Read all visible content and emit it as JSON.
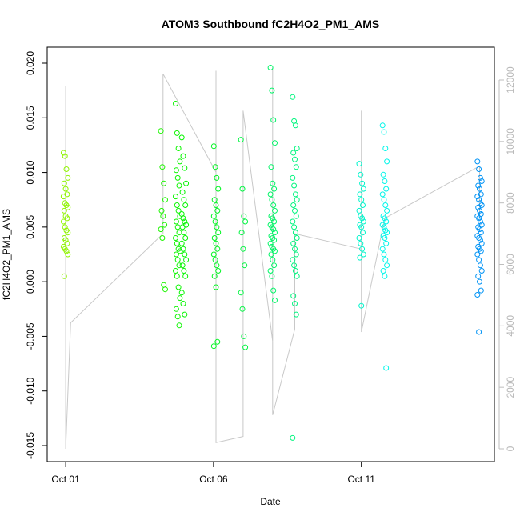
{
  "chart_data": {
    "type": "scatter",
    "title": "ATOM3 Southbound fC2H4O2_PM1_AMS",
    "xlabel": "Date",
    "ylabel": "fC2H4O2_PM1_AMS",
    "x_ticks": [
      {
        "date": "2016-10-01",
        "label": "Oct 01"
      },
      {
        "date": "2016-10-06",
        "label": "Oct 06"
      },
      {
        "date": "2016-10-11",
        "label": "Oct 11"
      }
    ],
    "xlim": [
      "2016-09-30T09:00",
      "2016-10-15T12:00"
    ],
    "ylim": [
      -0.015,
      0.02
    ],
    "y_ticks": [
      -0.015,
      -0.01,
      -0.005,
      0.0,
      0.005,
      0.01,
      0.015,
      0.02
    ],
    "y_tick_labels": [
      "-0.015",
      "-0.010",
      "-0.005",
      "0.000",
      "0.005",
      "0.010",
      "0.015",
      "0.020"
    ],
    "right_axis": {
      "ylim": [
        0,
        12000
      ],
      "ticks": [
        0,
        2000,
        4000,
        6000,
        8000,
        10000,
        12000
      ],
      "tick_labels": [
        "0",
        "2000",
        "4000",
        "6000",
        "8000",
        "10000",
        "12000"
      ],
      "color": "#bebebe"
    },
    "grid": false,
    "legend": "none",
    "marker": "open-circle",
    "color_scale": "rainbow by time (yellow-green to blue)",
    "line_color": "#c8c8c8",
    "clusters": [
      {
        "t": "2016-10-01T00:00",
        "vals": [
          0.0118,
          0.0115,
          0.0103,
          0.0095,
          0.009,
          0.0085,
          0.008,
          0.0078,
          0.0072,
          0.007,
          0.0068,
          0.0065,
          0.006,
          0.0058,
          0.0055,
          0.005,
          0.0047,
          0.0045,
          0.004,
          0.0038,
          0.0035,
          0.0032,
          0.003,
          0.0028,
          0.0025,
          0.0005
        ]
      },
      {
        "t": "2016-10-04T07:00",
        "vals": [
          0.0138,
          0.0105,
          0.009,
          0.0075,
          0.0065,
          0.006,
          0.0052,
          0.0048,
          0.004,
          -0.0003,
          -0.0007
        ]
      },
      {
        "t": "2016-10-04T19:00",
        "vals": [
          0.0163,
          0.0136,
          0.0122,
          0.011,
          0.0102,
          0.0095,
          0.0088,
          0.0078,
          0.007,
          0.0065,
          0.006,
          0.0055,
          0.005,
          0.0045,
          0.004,
          0.0035,
          0.003,
          0.0028,
          0.0025,
          0.002,
          0.0015,
          0.001,
          0.0005,
          -0.0005,
          -0.0015,
          -0.0025,
          -0.0032,
          -0.004
        ]
      },
      {
        "t": "2016-10-05T00:00",
        "vals": [
          0.0132,
          0.0115,
          0.0104,
          0.009,
          0.0082,
          0.0075,
          0.007,
          0.0062,
          0.0058,
          0.0055,
          0.0052,
          0.005,
          0.0045,
          0.004,
          0.0035,
          0.003,
          0.0025,
          0.002,
          0.0015,
          0.001,
          0.0005,
          -0.001,
          -0.002,
          -0.003
        ]
      },
      {
        "t": "2016-10-06T02:00",
        "vals": [
          0.0124,
          0.0105,
          0.0095,
          0.0085,
          0.0075,
          0.007,
          0.0065,
          0.006,
          0.0055,
          0.005,
          0.0045,
          0.004,
          0.0035,
          0.003,
          0.0025,
          0.002,
          0.0015,
          0.001,
          0.0005,
          -0.0005,
          -0.0055,
          -0.0059
        ]
      },
      {
        "t": "2016-10-07T00:00",
        "vals": [
          0.013,
          0.0085,
          0.006,
          0.0055,
          0.0045,
          0.003,
          0.0015,
          -0.001,
          -0.0025,
          -0.005,
          -0.006
        ]
      },
      {
        "t": "2016-10-08T00:00",
        "vals": [
          0.0196,
          0.0175,
          0.0148,
          0.0127,
          0.0105,
          0.009,
          0.0085,
          0.008,
          0.0075,
          0.007,
          0.0065,
          0.006,
          0.0058,
          0.0055,
          0.0052,
          0.005,
          0.0048,
          0.0045,
          0.0042,
          0.004,
          0.0038,
          0.0035,
          0.0032,
          0.003,
          0.0028,
          0.0025,
          0.002,
          0.0015,
          0.001,
          0.0005,
          -0.0008,
          -0.0017
        ]
      },
      {
        "t": "2016-10-08T18:00",
        "vals": [
          0.0169,
          0.0147,
          0.0143,
          0.0122,
          0.0118,
          0.0112,
          0.0105,
          0.0095,
          0.0088,
          0.008,
          0.0075,
          0.007,
          0.0065,
          0.006,
          0.0055,
          0.005,
          0.0045,
          0.004,
          0.0035,
          0.003,
          0.0025,
          0.002,
          0.0015,
          0.001,
          0.0005,
          -0.0013,
          -0.002,
          -0.003,
          -0.0143
        ]
      },
      {
        "t": "2016-10-11T00:00",
        "vals": [
          0.0108,
          0.0098,
          0.009,
          0.0085,
          0.008,
          0.0075,
          0.007,
          0.0065,
          0.006,
          0.0058,
          0.0055,
          0.0052,
          0.005,
          0.0045,
          0.004,
          0.0035,
          0.003,
          0.0025,
          0.0022,
          -0.0022
        ]
      },
      {
        "t": "2016-10-11T19:00",
        "vals": [
          0.0143,
          0.0137,
          0.0122,
          0.011,
          0.0098,
          0.0092,
          0.0085,
          0.008,
          0.0075,
          0.007,
          0.0065,
          0.006,
          0.0058,
          0.0055,
          0.0052,
          0.005,
          0.0047,
          0.0045,
          0.0042,
          0.004,
          0.0035,
          0.003,
          0.0025,
          0.002,
          0.0015,
          0.001,
          0.0005,
          -0.0079
        ]
      },
      {
        "t": "2016-10-15T00:00",
        "vals": [
          0.011,
          0.0103,
          0.0095,
          0.0092,
          0.0088,
          0.0085,
          0.008,
          0.0078,
          0.0075,
          0.0072,
          0.007,
          0.0068,
          0.0065,
          0.0062,
          0.006,
          0.0058,
          0.0055,
          0.0052,
          0.005,
          0.0048,
          0.0045,
          0.0042,
          0.004,
          0.0038,
          0.0035,
          0.0032,
          0.003,
          0.0028,
          0.0025,
          0.002,
          0.0015,
          0.001,
          0.0005,
          0.0,
          -0.0008,
          -0.0012,
          -0.0046
        ]
      }
    ],
    "aux_series": {
      "name": "",
      "axis": "right",
      "points": [
        {
          "t": "2016-10-01T00:00",
          "v": 11800
        },
        {
          "t": "2016-10-01T00:00",
          "v": 4200
        },
        {
          "t": "2016-10-01T00:00",
          "v": 11700
        },
        {
          "t": "2016-10-01T00:00",
          "v": 0
        },
        {
          "t": "2016-10-01T04:00",
          "v": 4100
        },
        {
          "t": "2016-10-04T07:00",
          "v": 7000
        },
        {
          "t": "2016-10-04T07:00",
          "v": 12200
        },
        {
          "t": "2016-10-06T02:00",
          "v": 9000
        },
        {
          "t": "2016-10-06T02:00",
          "v": 12300
        },
        {
          "t": "2016-10-06T02:00",
          "v": 200
        },
        {
          "t": "2016-10-07T00:00",
          "v": 400
        },
        {
          "t": "2016-10-07T00:00",
          "v": 11000
        },
        {
          "t": "2016-10-08T00:00",
          "v": 3500
        },
        {
          "t": "2016-10-08T00:00",
          "v": 12400
        },
        {
          "t": "2016-10-08T00:00",
          "v": 1100
        },
        {
          "t": "2016-10-08T18:00",
          "v": 3900
        },
        {
          "t": "2016-10-08T18:00",
          "v": 7000
        },
        {
          "t": "2016-10-11T00:00",
          "v": 6500
        },
        {
          "t": "2016-10-11T00:00",
          "v": 11000
        },
        {
          "t": "2016-10-11T00:00",
          "v": 3800
        },
        {
          "t": "2016-10-11T19:00",
          "v": 7500
        },
        {
          "t": "2016-10-15T00:00",
          "v": 9200
        },
        {
          "t": "2016-10-15T00:00",
          "v": 7600
        }
      ]
    }
  }
}
